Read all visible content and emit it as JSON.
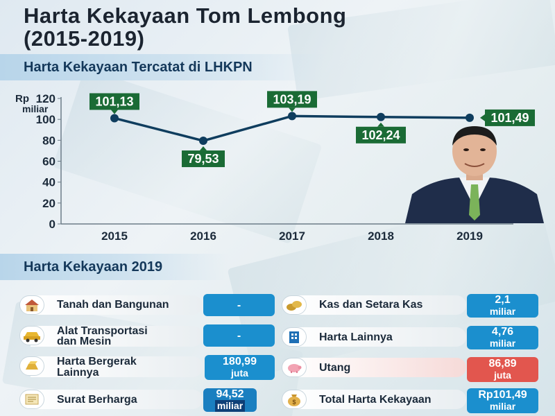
{
  "title_line1": "Harta Kekayaan Tom Lembong",
  "title_line2": "(2015-2019)",
  "section_chart": "Harta Kekayaan Tercatat di LHKPN",
  "section_list": "Harta Kekayaan 2019",
  "chart_data": {
    "type": "line",
    "ylabel": "Rp miliar",
    "ylabel_line1": "Rp",
    "ylabel_line2": "miliar",
    "ylim": [
      0,
      120
    ],
    "yticks": [
      "0",
      "20",
      "40",
      "60",
      "80",
      "100",
      "120"
    ],
    "categories": [
      "2015",
      "2016",
      "2017",
      "2018",
      "2019"
    ],
    "values": [
      101.13,
      79.53,
      103.19,
      102.24,
      101.49
    ],
    "value_labels": [
      "101,13",
      "79,53",
      "103,19",
      "102,24",
      "101,49"
    ],
    "line_color": "#0f3d5e",
    "label_color": "#1a6b35"
  },
  "items": [
    {
      "label": "Tanah dan Bangunan",
      "value": "-",
      "unit": "",
      "icon": "house-icon",
      "color": "#1b8fce"
    },
    {
      "label": "Kas dan Setara Kas",
      "value": "2,1",
      "unit": "miliar",
      "icon": "coins-icon",
      "color": "#1b8fce"
    },
    {
      "label": "Alat Transportasi dan Mesin",
      "value": "-",
      "unit": "",
      "icon": "car-icon",
      "color": "#1b8fce"
    },
    {
      "label": "Harta Lainnya",
      "value": "4,76",
      "unit": "miliar",
      "icon": "building-icon",
      "color": "#1b8fce"
    },
    {
      "label": "Harta Bergerak Lainnya",
      "value": "180,99",
      "unit": "juta",
      "icon": "gold-bar-icon",
      "color": "#1b8fce"
    },
    {
      "label": "Utang",
      "value": "86,89",
      "unit": "juta",
      "icon": "piggy-bank-icon",
      "color": "#e2564e"
    },
    {
      "label": "Surat Berharga",
      "value": "94,52",
      "unit": "miliar",
      "icon": "document-icon",
      "color": "#1b8fce"
    },
    {
      "label": "Total Harta Kekayaan",
      "value": "Rp101,49",
      "unit": "miliar",
      "icon": "money-bag-icon",
      "color": "#1b8fce"
    }
  ],
  "item_label_lines": {
    "alat_1": "Alat Transportasi",
    "alat_2": "dan Mesin",
    "bergerak_1": "Harta Bergerak",
    "bergerak_2": "Lainnya"
  }
}
